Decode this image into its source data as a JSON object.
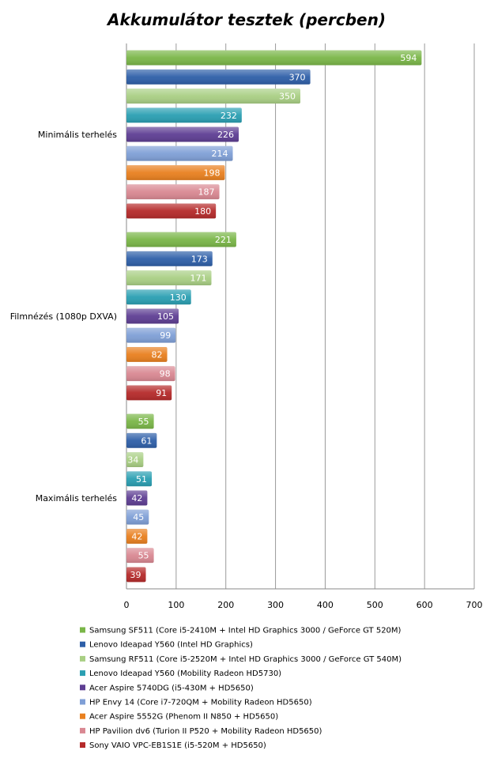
{
  "chart_data": {
    "type": "bar",
    "orientation": "horizontal",
    "title": "Akkumulátor tesztek (percben)",
    "categories": [
      "Minimális terhelés",
      "Filmnézés (1080p DXVA)",
      "Maximális terhelés"
    ],
    "xlim": [
      0,
      700
    ],
    "x_ticks": [
      0,
      100,
      200,
      300,
      400,
      500,
      600,
      700
    ],
    "grid": true,
    "legend_position": "bottom",
    "series": [
      {
        "name": "Samsung SF511 (Core i5-2410M + Intel HD Graphics 3000 / GeForce GT 520M)",
        "color": "#7ab648",
        "values": [
          594,
          221,
          55
        ]
      },
      {
        "name": "Lenovo Ideapad Y560 (Intel HD Graphics)",
        "color": "#2e5fa8",
        "values": [
          370,
          173,
          61
        ]
      },
      {
        "name": "Samsung RF511 (Core i5-2520M + Intel HD Graphics 3000 / GeForce GT 540M)",
        "color": "#a9cf84",
        "values": [
          350,
          171,
          34
        ]
      },
      {
        "name": "Lenovo Ideapad Y560 (Mobility Radeon HD5730)",
        "color": "#2a9fb2",
        "values": [
          232,
          130,
          51
        ]
      },
      {
        "name": "Acer Aspire 5740DG (i5-430M + HD5650)",
        "color": "#5e3e93",
        "values": [
          226,
          105,
          42
        ]
      },
      {
        "name": "HP Envy 14 (Core i7-720QM + Mobility Radeon HD5650)",
        "color": "#7f9fd6",
        "values": [
          214,
          99,
          45
        ]
      },
      {
        "name": "Acer Aspire 5552G (Phenom II N850 + HD5650)",
        "color": "#e9801f",
        "values": [
          198,
          82,
          42
        ]
      },
      {
        "name": "HP Pavilion dv6 (Turion II P520 + Mobility Radeon HD5650)",
        "color": "#d98892",
        "values": [
          187,
          98,
          55
        ]
      },
      {
        "name": "Sony VAIO VPC-EB1S1E (i5-520M + HD5650)",
        "color": "#b52a2a",
        "values": [
          180,
          91,
          39
        ]
      }
    ]
  }
}
